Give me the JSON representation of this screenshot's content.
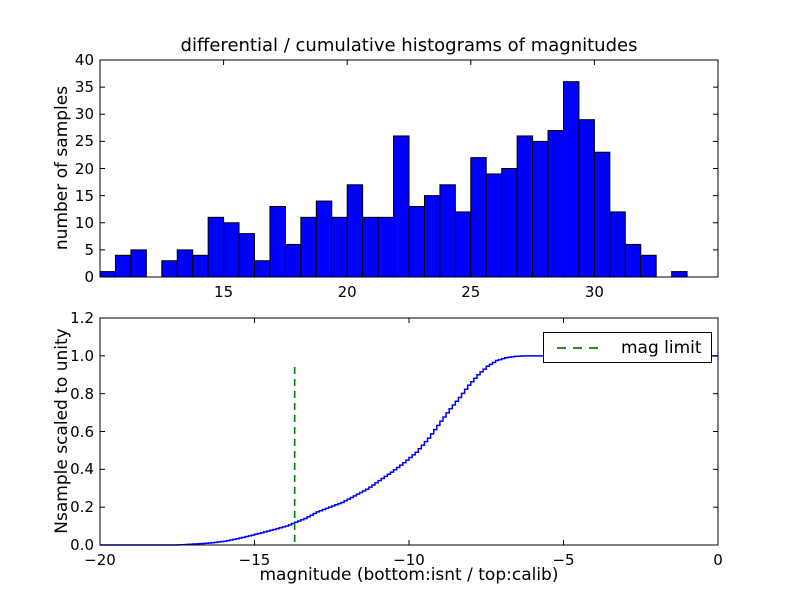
{
  "figure": {
    "title": "differential / cumulative histograms of magnitudes",
    "background_color": "#ffffff",
    "text_color": "#000000"
  },
  "chart_data": [
    {
      "type": "bar",
      "subplot": "top",
      "title": "differential / cumulative histograms of magnitudes",
      "ylabel": "number of samples",
      "xlim": [
        10,
        35
      ],
      "ylim": [
        0,
        40
      ],
      "xtick_values": [
        15,
        20,
        25,
        30
      ],
      "xtick_labels": [
        "15",
        "20",
        "25",
        "30"
      ],
      "ytick_values": [
        0,
        5,
        10,
        15,
        20,
        25,
        30,
        35,
        40
      ],
      "ytick_labels": [
        "0",
        "5",
        "10",
        "15",
        "20",
        "25",
        "30",
        "35",
        "40"
      ],
      "bin_start": 10.0,
      "bin_width": 0.625,
      "counts": [
        1,
        4,
        5,
        0,
        3,
        5,
        4,
        11,
        10,
        8,
        3,
        13,
        6,
        11,
        14,
        11,
        17,
        11,
        11,
        26,
        13,
        15,
        17,
        12,
        22,
        19,
        20,
        26,
        25,
        27,
        36,
        29,
        23,
        12,
        6,
        4,
        0,
        1
      ],
      "bar_fill": "#0000ff",
      "bar_edge": "#000000",
      "grid": false,
      "tick_direction": "in"
    },
    {
      "type": "line",
      "subplot": "bottom",
      "style": "steps",
      "ylabel": "Nsample scaled to unity",
      "xlabel": "magnitude (bottom:isnt / top:calib)",
      "xlim": [
        -20,
        0
      ],
      "ylim": [
        0,
        1.2
      ],
      "xtick_values": [
        -20,
        -15,
        -10,
        -5,
        0
      ],
      "xtick_labels": [
        "−20",
        "−15",
        "−10",
        "−5",
        "0"
      ],
      "ytick_values": [
        0,
        0.2,
        0.4,
        0.6,
        0.8,
        1.0,
        1.2
      ],
      "ytick_labels": [
        "0.0",
        "0.2",
        "0.4",
        "0.6",
        "0.8",
        "1.0",
        "1.2"
      ],
      "line_color": "#0000ff",
      "step_resolution": 0.1,
      "cdf_points": [
        [
          -20,
          0
        ],
        [
          -17.6,
          0
        ],
        [
          -17.2,
          0.003
        ],
        [
          -16.8,
          0.007
        ],
        [
          -16.4,
          0.012
        ],
        [
          -16,
          0.02
        ],
        [
          -15.6,
          0.033
        ],
        [
          -15.2,
          0.048
        ],
        [
          -14.8,
          0.065
        ],
        [
          -14.4,
          0.082
        ],
        [
          -14,
          0.1
        ],
        [
          -13.7,
          0.12
        ],
        [
          -13.4,
          0.14
        ],
        [
          -13,
          0.175
        ],
        [
          -12.6,
          0.2
        ],
        [
          -12.2,
          0.225
        ],
        [
          -11.8,
          0.26
        ],
        [
          -11.4,
          0.295
        ],
        [
          -11,
          0.34
        ],
        [
          -10.6,
          0.385
        ],
        [
          -10.2,
          0.435
        ],
        [
          -9.8,
          0.49
        ],
        [
          -9.4,
          0.565
        ],
        [
          -9,
          0.655
        ],
        [
          -8.7,
          0.72
        ],
        [
          -8.4,
          0.78
        ],
        [
          -8.1,
          0.845
        ],
        [
          -7.8,
          0.9
        ],
        [
          -7.5,
          0.945
        ],
        [
          -7.2,
          0.975
        ],
        [
          -6.9,
          0.99
        ],
        [
          -6.6,
          0.997
        ],
        [
          -6.3,
          1.0
        ],
        [
          0,
          1.0
        ]
      ],
      "mag_limit": {
        "value": -13.7,
        "color": "#008000",
        "linestyle": "dashed",
        "span": [
          0,
          0.957
        ]
      },
      "legend": {
        "label": "mag limit",
        "location": "upper right",
        "border_color": "#000000"
      },
      "grid": false,
      "tick_direction": "in"
    }
  ]
}
